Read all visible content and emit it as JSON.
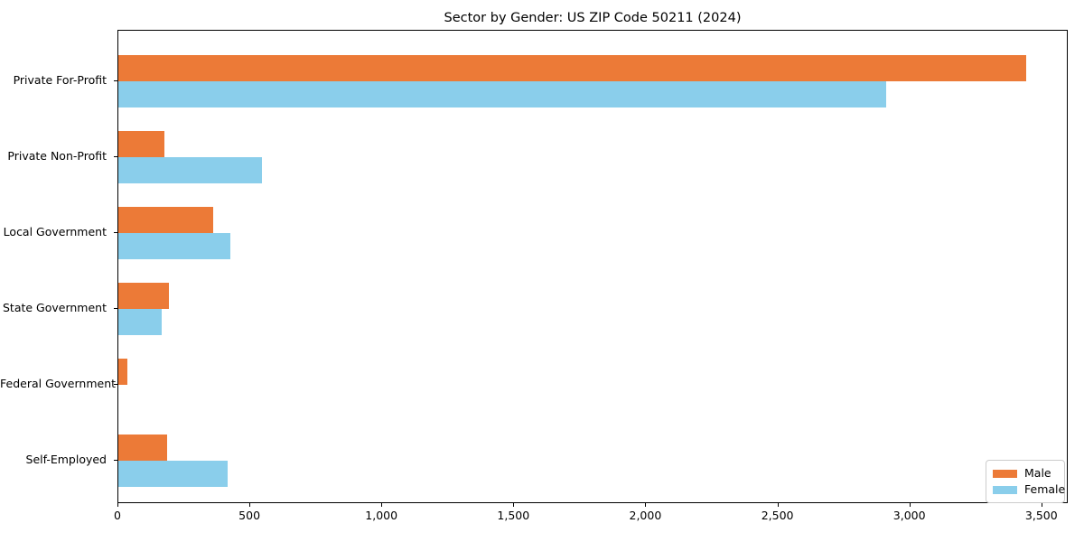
{
  "title": "Sector by Gender: US ZIP Code 50211 (2024)",
  "chart_data": {
    "type": "bar",
    "orientation": "horizontal",
    "title": "Sector by Gender: US ZIP Code 50211 (2024)",
    "categories": [
      "Private For-Profit",
      "Private Non-Profit",
      "Local Government",
      "State Government",
      "Federal Government",
      "Self-Employed"
    ],
    "series": [
      {
        "name": "Male",
        "color": "#EC7A37",
        "values": [
          3440,
          175,
          360,
          190,
          35,
          185
        ]
      },
      {
        "name": "Female",
        "color": "#8ACEEB",
        "values": [
          2910,
          545,
          425,
          165,
          0,
          415
        ]
      }
    ],
    "xlabel": "",
    "ylabel": "",
    "xlim": [
      0,
      3600
    ],
    "xticks": [
      0,
      500,
      1000,
      1500,
      2000,
      2500,
      3000,
      3500
    ],
    "xtick_labels": [
      "0",
      "500",
      "1,000",
      "1,500",
      "2,000",
      "2,500",
      "3,000",
      "3,500"
    ],
    "grid": false,
    "legend_position": "lower right",
    "background_color": "#ffffff",
    "text_color": "#000000",
    "spine_color": "#000000"
  }
}
